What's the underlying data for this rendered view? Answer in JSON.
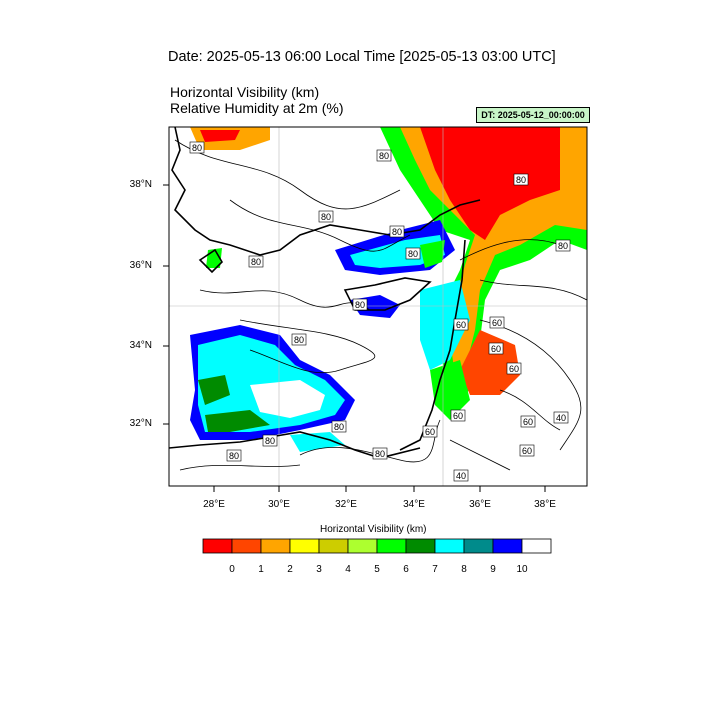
{
  "header": {
    "date_title": "Date: 2025-05-13  06:00 Local Time [2025-05-13  03:00 UTC]",
    "var_title_1": "Horizontal Visibility   (km)",
    "var_title_2": "Relative Humidity at 2m   (%)",
    "dt_badge": "DT: 2025-05-12_00:00:00"
  },
  "map": {
    "lat_labels": [
      "38°N",
      "36°N",
      "34°N",
      "32°N"
    ],
    "lon_labels": [
      "28°E",
      "30°E",
      "32°E",
      "34°E",
      "36°E",
      "38°E"
    ],
    "contour_labels": [
      "80",
      "80",
      "80",
      "80",
      "80",
      "80",
      "80",
      "80",
      "80",
      "80",
      "60",
      "60",
      "60",
      "60",
      "80",
      "80",
      "60",
      "60",
      "60",
      "40",
      "60",
      "40",
      "80",
      "80"
    ]
  },
  "legend": {
    "title": "Horizontal Visibility  (km)",
    "colors": [
      "#ff0000",
      "#ff4500",
      "#ffa500",
      "#ffff00",
      "#cdcd00",
      "#adff2f",
      "#00ff00",
      "#008b00",
      "#00ffff",
      "#008b8b",
      "#0000ff",
      "#ffffff"
    ],
    "ticks": [
      "0",
      "1",
      "2",
      "3",
      "4",
      "5",
      "6",
      "7",
      "8",
      "9",
      "10"
    ]
  }
}
